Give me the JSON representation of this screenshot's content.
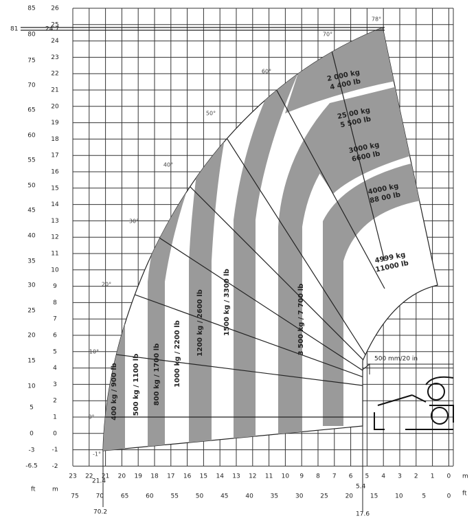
{
  "y_axis": {
    "m_labels": [
      "26",
      "25",
      "24",
      "23",
      "22",
      "21",
      "20",
      "19",
      "18",
      "17",
      "16",
      "15",
      "14",
      "13",
      "12",
      "11",
      "10",
      "9",
      "8",
      "7",
      "6",
      "5",
      "4",
      "3",
      "2",
      "1",
      "0",
      "-1",
      "-2"
    ],
    "ft_labels": [
      "85",
      "80",
      "75",
      "70",
      "65",
      "60",
      "55",
      "50",
      "45",
      "40",
      "35",
      "30",
      "25",
      "20",
      "15",
      "10",
      "5",
      "0",
      "-3",
      "-6.5"
    ],
    "max_m": "24.7",
    "max_ft": "81"
  },
  "x_axis": {
    "m_labels": [
      "23",
      "22",
      "21",
      "20",
      "19",
      "18",
      "17",
      "16",
      "15",
      "14",
      "13",
      "12",
      "11",
      "10",
      "9",
      "8",
      "7",
      "6",
      "5",
      "4",
      "3",
      "2",
      "1",
      "0"
    ],
    "ft_labels": [
      "75",
      "70",
      "65",
      "60",
      "55",
      "50",
      "45",
      "40",
      "35",
      "30",
      "25",
      "20",
      "15",
      "10",
      "5",
      "0"
    ],
    "reach_m": "21.4",
    "reach_ft": "70.2",
    "pivot_m": "5.4",
    "pivot_ft": "17.6",
    "unit_ft": "ft",
    "unit_m": "m"
  },
  "angles": [
    "-1°",
    "0°",
    "10°",
    "20°",
    "30°",
    "40°",
    "50°",
    "60°",
    "70°",
    "78°"
  ],
  "loads_vertical": [
    "400 kg / 900 lb",
    "500 kg / 1100 lb",
    "800 kg / 1700 lb",
    "1000 kg / 2200 lb",
    "1200 kg / 2600 lb",
    "1500 kg / 3300 lb",
    "3 500 kg / 7 700 lb"
  ],
  "loads_top": [
    [
      "2 000 kg",
      "4 400 lb"
    ],
    [
      "25 00 kg",
      "5 500 lb"
    ],
    [
      "3000 kg",
      "6600 lb"
    ],
    [
      "4000 kg",
      "88 00 lb"
    ],
    [
      "4999 kg",
      "11000 lb"
    ]
  ],
  "stabilizer_note": "500 mm/20 in"
}
